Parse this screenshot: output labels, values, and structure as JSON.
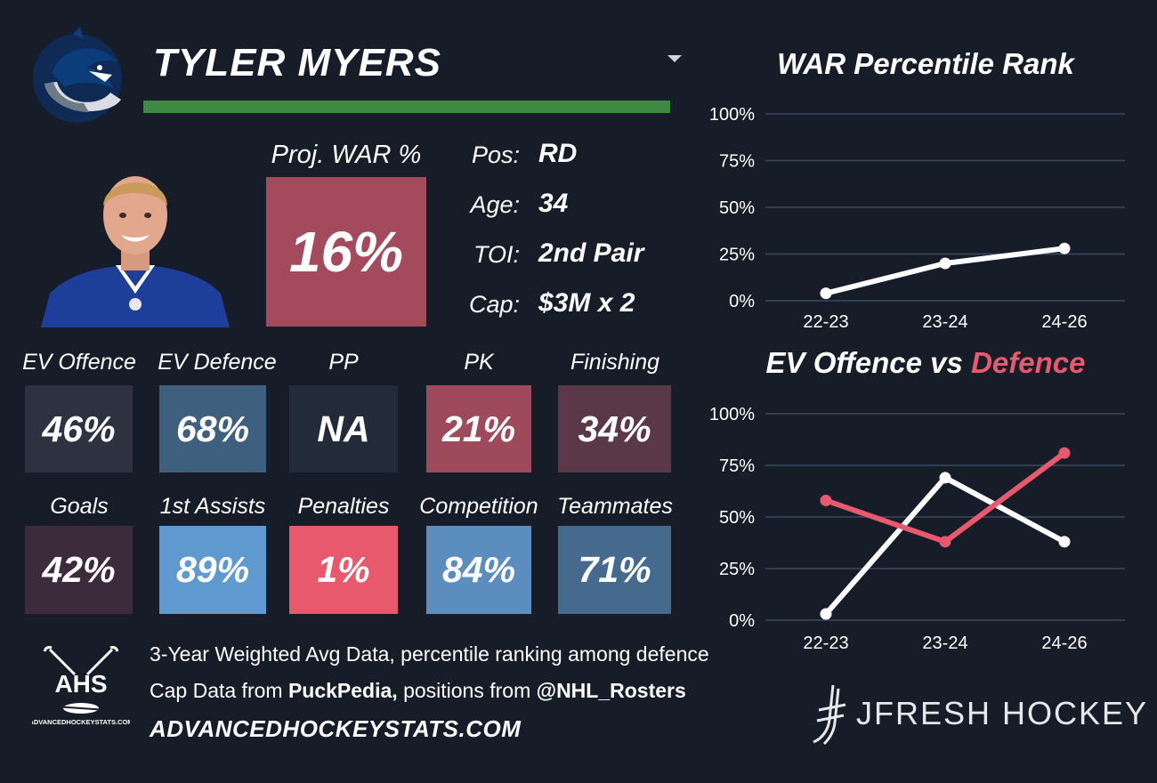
{
  "player": {
    "name": "TYLER MYERS",
    "accent_color": "#3f8a43"
  },
  "projection": {
    "label": "Proj. WAR %",
    "value": "16%",
    "color": "#a34a5d"
  },
  "bio": [
    {
      "label": "Pos:",
      "value": "RD"
    },
    {
      "label": "Age:",
      "value": "34"
    },
    {
      "label": "TOI:",
      "value": "2nd Pair"
    },
    {
      "label": "Cap:",
      "value": "$3M x 2"
    }
  ],
  "metrics_row1": [
    {
      "label": "EV Offence",
      "value": "46%",
      "color": "#2d3140"
    },
    {
      "label": "EV Defence",
      "value": "68%",
      "color": "#3f5f7f"
    },
    {
      "label": "PP",
      "value": "NA",
      "color": "#222b38"
    },
    {
      "label": "PK",
      "value": "21%",
      "color": "#9e4a5c"
    },
    {
      "label": "Finishing",
      "value": "34%",
      "color": "#5b3847"
    }
  ],
  "metrics_row2": [
    {
      "label": "Goals",
      "value": "42%",
      "color": "#3b2b3c"
    },
    {
      "label": "1st Assists",
      "value": "89%",
      "color": "#5e9ad0"
    },
    {
      "label": "Penalties",
      "value": "1%",
      "color": "#e8596e"
    },
    {
      "label": "Competition",
      "value": "84%",
      "color": "#5b8dbf"
    },
    {
      "label": "Teammates",
      "value": "71%",
      "color": "#456a8e"
    }
  ],
  "footer": {
    "line1": "3-Year Weighted Avg Data, percentile ranking among defence",
    "line2_prefix": "Cap Data from ",
    "line2_source1": "PuckPedia,",
    "line2_middle": " positions from ",
    "line2_source2": "@NHL_Rosters",
    "site": "ADVANCEDHOCKEYSTATS.COM",
    "ahs_logo_text": "AHS",
    "ahs_logo_subtext": "ADVANCEDHOCKEYSTATS.COM",
    "brand": "JFRESH HOCKEY"
  },
  "chart_data": [
    {
      "type": "line",
      "title": "WAR Percentile Rank",
      "categories": [
        "22-23",
        "23-24",
        "24-26"
      ],
      "yticks": [
        "100%",
        "75%",
        "50%",
        "25%",
        "0%"
      ],
      "ylim": [
        0,
        100
      ],
      "grid": true,
      "series": [
        {
          "values": [
            4,
            20,
            28
          ],
          "color": "#ffffff"
        }
      ]
    },
    {
      "type": "line",
      "title_part1": "EV Offence vs ",
      "title_part2": "Defence",
      "title_part2_color": "#e8596e",
      "categories": [
        "22-23",
        "23-24",
        "24-26"
      ],
      "yticks": [
        "100%",
        "75%",
        "50%",
        "25%",
        "0%"
      ],
      "ylim": [
        0,
        100
      ],
      "grid": true,
      "series": [
        {
          "values": [
            3,
            69,
            38
          ],
          "color": "#ffffff"
        },
        {
          "values": [
            58,
            38,
            81
          ],
          "color": "#e8596e"
        }
      ]
    }
  ]
}
